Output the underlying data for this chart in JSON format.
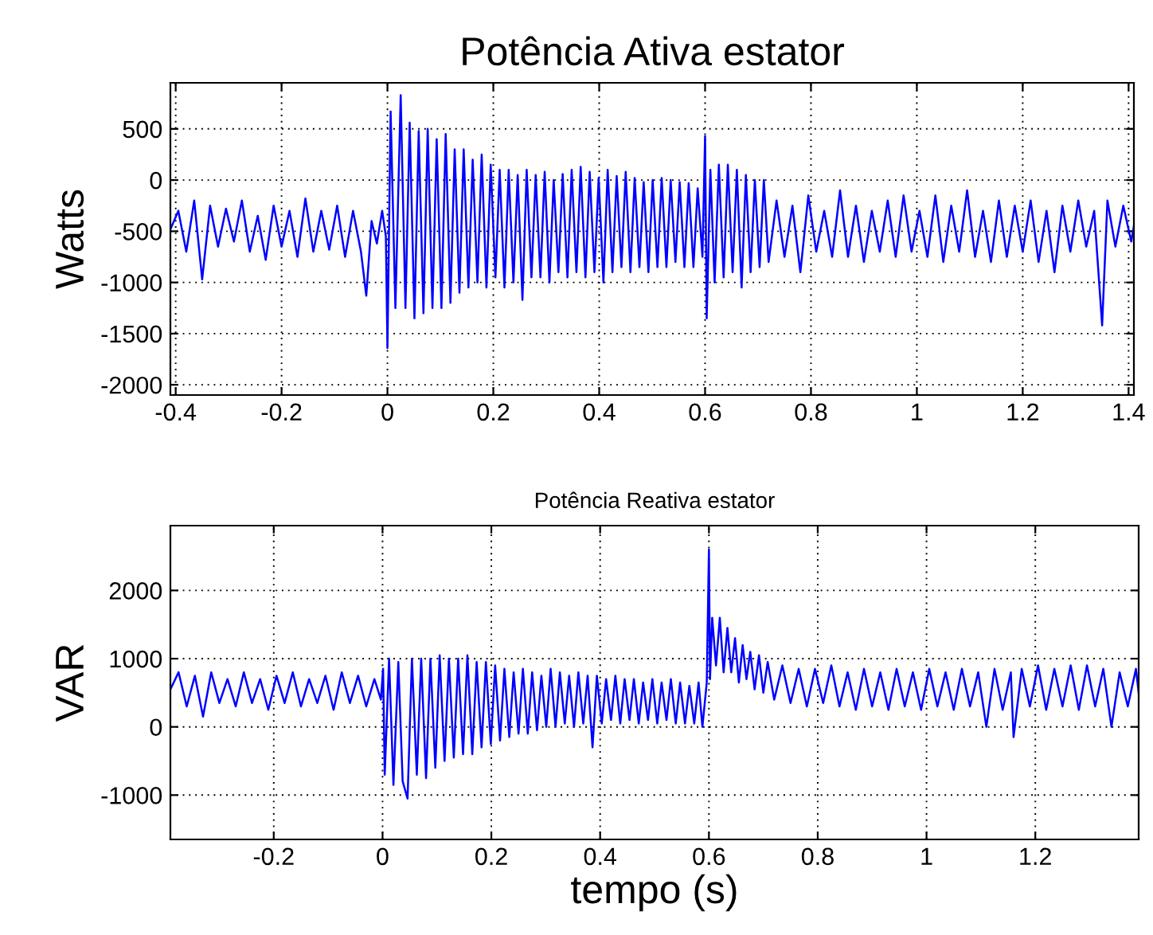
{
  "chart_data": [
    {
      "type": "line",
      "title": "Potência Ativa estator",
      "ylabel": "Watts",
      "xlim": [
        -0.41,
        1.41
      ],
      "ylim": [
        -2100,
        950
      ],
      "xticks": [
        -0.4,
        -0.2,
        0,
        0.2,
        0.4,
        0.6,
        0.8,
        1,
        1.2,
        1.4
      ],
      "yticks": [
        -2000,
        -1500,
        -1000,
        -500,
        0,
        500
      ],
      "grid": true,
      "marker": "none",
      "line_style": "solid",
      "series": [
        {
          "color": "#0000ff",
          "x": [
            -0.41,
            -0.395,
            -0.38,
            -0.365,
            -0.35,
            -0.335,
            -0.32,
            -0.305,
            -0.29,
            -0.275,
            -0.26,
            -0.245,
            -0.23,
            -0.215,
            -0.2,
            -0.185,
            -0.17,
            -0.155,
            -0.14,
            -0.125,
            -0.11,
            -0.095,
            -0.08,
            -0.065,
            -0.05,
            -0.04,
            -0.03,
            -0.02,
            -0.01,
            -0.003,
            0.0,
            0.006,
            0.015,
            0.025,
            0.034,
            0.042,
            0.051,
            0.059,
            0.068,
            0.076,
            0.085,
            0.093,
            0.102,
            0.11,
            0.119,
            0.127,
            0.136,
            0.144,
            0.153,
            0.161,
            0.17,
            0.178,
            0.187,
            0.195,
            0.204,
            0.212,
            0.221,
            0.229,
            0.238,
            0.246,
            0.255,
            0.263,
            0.272,
            0.28,
            0.289,
            0.297,
            0.306,
            0.314,
            0.323,
            0.331,
            0.34,
            0.348,
            0.357,
            0.365,
            0.374,
            0.382,
            0.391,
            0.399,
            0.408,
            0.416,
            0.425,
            0.433,
            0.442,
            0.45,
            0.459,
            0.467,
            0.476,
            0.484,
            0.493,
            0.501,
            0.51,
            0.518,
            0.527,
            0.535,
            0.544,
            0.552,
            0.561,
            0.569,
            0.578,
            0.586,
            0.595,
            0.6,
            0.603,
            0.61,
            0.618,
            0.626,
            0.635,
            0.643,
            0.652,
            0.66,
            0.669,
            0.677,
            0.686,
            0.694,
            0.703,
            0.711,
            0.72,
            0.735,
            0.75,
            0.765,
            0.78,
            0.795,
            0.81,
            0.825,
            0.84,
            0.855,
            0.87,
            0.885,
            0.9,
            0.915,
            0.93,
            0.945,
            0.96,
            0.975,
            0.99,
            1.005,
            1.02,
            1.035,
            1.05,
            1.065,
            1.08,
            1.095,
            1.11,
            1.125,
            1.14,
            1.155,
            1.17,
            1.185,
            1.2,
            1.215,
            1.23,
            1.245,
            1.26,
            1.275,
            1.29,
            1.305,
            1.32,
            1.335,
            1.35,
            1.36,
            1.375,
            1.39,
            1.405,
            1.41
          ],
          "values": [
            -480,
            -300,
            -700,
            -200,
            -970,
            -250,
            -650,
            -280,
            -600,
            -200,
            -700,
            -350,
            -780,
            -250,
            -650,
            -300,
            -750,
            -180,
            -700,
            -300,
            -680,
            -250,
            -750,
            -300,
            -700,
            -1130,
            -400,
            -620,
            -300,
            -550,
            -1640,
            670,
            -1250,
            830,
            -1250,
            560,
            -1350,
            480,
            -1300,
            500,
            -1250,
            400,
            -1250,
            450,
            -1200,
            300,
            -1100,
            300,
            -1050,
            200,
            -1000,
            250,
            -1050,
            150,
            -950,
            100,
            -1050,
            100,
            -1000,
            50,
            -1170,
            100,
            -950,
            50,
            -950,
            80,
            -1000,
            0,
            -900,
            60,
            -950,
            100,
            -900,
            130,
            -950,
            80,
            -900,
            20,
            -1000,
            100,
            -900,
            40,
            -850,
            80,
            -900,
            20,
            -850,
            -20,
            -900,
            0,
            -850,
            20,
            -850,
            0,
            -800,
            -20,
            -850,
            -30,
            -850,
            -80,
            -750,
            430,
            -1350,
            100,
            -1000,
            150,
            -950,
            150,
            -900,
            100,
            -1050,
            50,
            -900,
            0,
            -850,
            0,
            -800,
            -200,
            -750,
            -250,
            -900,
            -150,
            -700,
            -300,
            -750,
            -100,
            -750,
            -250,
            -800,
            -300,
            -700,
            -200,
            -750,
            -150,
            -700,
            -300,
            -750,
            -150,
            -800,
            -250,
            -700,
            -100,
            -750,
            -300,
            -800,
            -200,
            -750,
            -250,
            -700,
            -200,
            -800,
            -300,
            -900,
            -250,
            -700,
            -200,
            -650,
            -300,
            -1420,
            -200,
            -650,
            -250,
            -600,
            -450
          ]
        }
      ]
    },
    {
      "type": "line",
      "title": "Potência Reativa estator",
      "ylabel": "VAR",
      "xlabel": "tempo (s)",
      "xlim": [
        -0.39,
        1.39
      ],
      "ylim": [
        -1650,
        2950
      ],
      "xticks": [
        -0.2,
        0,
        0.2,
        0.4,
        0.6,
        0.8,
        1,
        1.2
      ],
      "yticks": [
        -1000,
        0,
        1000,
        2000
      ],
      "grid": true,
      "marker": "none",
      "line_style": "solid",
      "series": [
        {
          "color": "#0000ff",
          "x": [
            -0.39,
            -0.375,
            -0.36,
            -0.345,
            -0.33,
            -0.315,
            -0.3,
            -0.285,
            -0.27,
            -0.255,
            -0.24,
            -0.225,
            -0.21,
            -0.195,
            -0.18,
            -0.165,
            -0.15,
            -0.135,
            -0.12,
            -0.105,
            -0.09,
            -0.075,
            -0.06,
            -0.045,
            -0.03,
            -0.015,
            -0.003,
            0.001,
            0.004,
            0.012,
            0.02,
            0.029,
            0.037,
            0.046,
            0.054,
            0.063,
            0.071,
            0.08,
            0.088,
            0.097,
            0.105,
            0.114,
            0.122,
            0.131,
            0.139,
            0.148,
            0.156,
            0.165,
            0.173,
            0.182,
            0.19,
            0.199,
            0.207,
            0.216,
            0.224,
            0.233,
            0.241,
            0.25,
            0.258,
            0.267,
            0.275,
            0.284,
            0.292,
            0.301,
            0.309,
            0.318,
            0.326,
            0.335,
            0.343,
            0.352,
            0.36,
            0.369,
            0.377,
            0.386,
            0.394,
            0.403,
            0.411,
            0.42,
            0.428,
            0.437,
            0.445,
            0.454,
            0.462,
            0.471,
            0.479,
            0.488,
            0.496,
            0.505,
            0.513,
            0.522,
            0.53,
            0.539,
            0.547,
            0.556,
            0.564,
            0.573,
            0.581,
            0.588,
            0.596,
            0.6,
            0.602,
            0.606,
            0.613,
            0.62,
            0.627,
            0.634,
            0.641,
            0.648,
            0.655,
            0.662,
            0.669,
            0.676,
            0.684,
            0.692,
            0.7,
            0.708,
            0.72,
            0.735,
            0.75,
            0.765,
            0.78,
            0.795,
            0.81,
            0.825,
            0.84,
            0.855,
            0.87,
            0.885,
            0.9,
            0.915,
            0.93,
            0.945,
            0.96,
            0.975,
            0.99,
            1.005,
            1.02,
            1.035,
            1.05,
            1.065,
            1.08,
            1.095,
            1.11,
            1.125,
            1.14,
            1.155,
            1.16,
            1.175,
            1.19,
            1.205,
            1.22,
            1.235,
            1.25,
            1.265,
            1.28,
            1.295,
            1.31,
            1.325,
            1.34,
            1.355,
            1.37,
            1.385,
            1.39
          ],
          "values": [
            550,
            800,
            300,
            750,
            150,
            800,
            350,
            700,
            300,
            800,
            350,
            700,
            250,
            750,
            350,
            800,
            300,
            700,
            350,
            750,
            250,
            800,
            350,
            750,
            300,
            700,
            400,
            850,
            -700,
            1000,
            -850,
            950,
            -800,
            -1050,
            1000,
            -700,
            1000,
            -750,
            1000,
            -600,
            1050,
            -500,
            1000,
            -450,
            1000,
            -400,
            1050,
            -400,
            950,
            -300,
            950,
            -250,
            900,
            -200,
            850,
            -150,
            800,
            -100,
            850,
            -100,
            800,
            -50,
            750,
            0,
            850,
            0,
            800,
            50,
            750,
            0,
            800,
            50,
            750,
            -300,
            750,
            50,
            700,
            100,
            750,
            50,
            700,
            100,
            700,
            50,
            650,
            100,
            700,
            50,
            650,
            100,
            700,
            50,
            650,
            50,
            600,
            50,
            650,
            0,
            650,
            2600,
            700,
            1600,
            900,
            1600,
            800,
            1450,
            800,
            1300,
            650,
            1200,
            700,
            1100,
            550,
            1050,
            500,
            950,
            400,
            900,
            350,
            850,
            300,
            850,
            350,
            900,
            300,
            800,
            250,
            850,
            300,
            800,
            250,
            850,
            300,
            800,
            250,
            850,
            300,
            800,
            250,
            850,
            300,
            800,
            0,
            850,
            250,
            800,
            -150,
            850,
            300,
            900,
            250,
            850,
            300,
            900,
            250,
            900,
            300,
            850,
            0,
            800,
            300,
            850,
            500
          ]
        }
      ]
    }
  ]
}
